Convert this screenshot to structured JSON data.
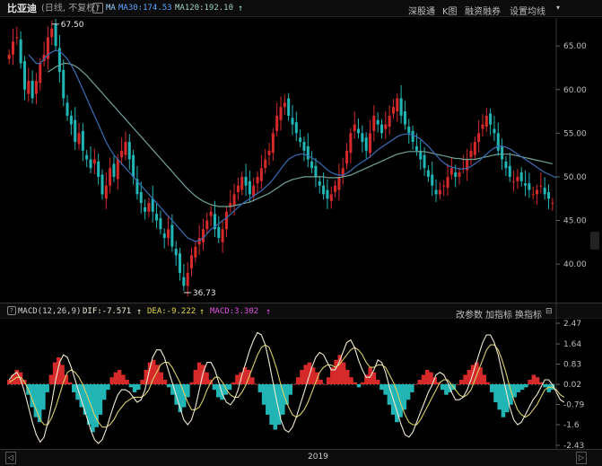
{
  "header": {
    "stock_name": "比亚迪",
    "period": "(日线, 不复权)",
    "help_icon": "?",
    "ma_prefix": "MA",
    "ma30": "MA30:174.53",
    "ma120": "MA120:192.10",
    "ma_arrow": "↑",
    "buttons": [
      "深股通",
      "K图",
      "融资融券",
      "设置均线"
    ],
    "dropdown_icon": "chevron-down-icon"
  },
  "price_axis": {
    "labels": [
      "65.00",
      "60.00",
      "55.00",
      "50.00",
      "45.00",
      "40.00"
    ]
  },
  "annotations": {
    "high": "67.50",
    "low": "36.73"
  },
  "macd": {
    "help_icon": "?",
    "title": "MACD(12,26,9)",
    "dif": "DIF:-7.571",
    "dif_arrow": "↑",
    "dea": "DEA:-9.222",
    "dea_arrow": "↑",
    "macd_val": "MACD:3.302",
    "macd_arrow": "↑",
    "buttons": [
      "改参数",
      "加指标",
      "换指标"
    ],
    "axis": [
      "2.47",
      "1.64",
      "0.83",
      "0.02",
      "-0.79",
      "-1.6",
      "-2.43"
    ]
  },
  "time_axis": {
    "year": "2019",
    "left_btn": "◁",
    "right_btn": "▷"
  },
  "chart_data": {
    "type": "candlestick",
    "y_range": [
      36,
      68
    ],
    "close": [
      64,
      65.5,
      66,
      63,
      60,
      61,
      59,
      61,
      63,
      64,
      66,
      67,
      65,
      62,
      59,
      57,
      56,
      54,
      55,
      53,
      52,
      51,
      52,
      50,
      48,
      49,
      51,
      50,
      52,
      53,
      54,
      52,
      50,
      48,
      47,
      46,
      47,
      46,
      45,
      44,
      43,
      44,
      42,
      41,
      39,
      37.5,
      39,
      41,
      42,
      43,
      44,
      45,
      46,
      44,
      43,
      44,
      46,
      47,
      48,
      49,
      50,
      49,
      48,
      49,
      50,
      51,
      52,
      53,
      55,
      57,
      58,
      58.5,
      57,
      56,
      55,
      54,
      53,
      52,
      51,
      50,
      49,
      48,
      47.5,
      48,
      49,
      50,
      51,
      53,
      55,
      56,
      55,
      54,
      53,
      55,
      57,
      56,
      55,
      56,
      57,
      58,
      59,
      57,
      56,
      55,
      54,
      53,
      52,
      51,
      50,
      49,
      48,
      48.5,
      49,
      50,
      51,
      50,
      50.5,
      51,
      52,
      53,
      54,
      55,
      56,
      57,
      56,
      55,
      53,
      52,
      51,
      50,
      49.5,
      50,
      49.5,
      49,
      48.5,
      48,
      48.5,
      49,
      48,
      47.5,
      47
    ],
    "ma_fast": [
      null,
      null,
      null,
      null,
      null,
      64,
      63.5,
      63,
      63,
      63.5,
      64,
      64.3,
      64.5,
      64.4,
      64,
      63.5,
      62.8,
      62,
      61,
      60,
      59,
      58,
      57,
      56,
      55,
      54,
      53.2,
      52.5,
      52,
      51.5,
      51,
      50.5,
      50,
      49.5,
      49,
      48.5,
      48,
      47.5,
      47,
      46.5,
      46,
      45.5,
      45,
      44.5,
      44,
      43.5,
      43,
      42.8,
      42.6,
      42.7,
      43,
      43.5,
      44,
      44.3,
      44.6,
      45,
      45.3,
      45.7,
      46.1,
      46.5,
      46.9,
      47.2,
      47.5,
      47.8,
      48.1,
      48.4,
      48.8,
      49.2,
      49.7,
      50.3,
      50.9,
      51.5,
      52,
      52.3,
      52.5,
      52.6,
      52.6,
      52.4,
      52.2,
      51.9,
      51.6,
      51.2,
      50.8,
      50.5,
      50.3,
      50.2,
      50.2,
      50.4,
      50.7,
      51.1,
      51.4,
      51.7,
      52,
      52.3,
      52.7,
      53.1,
      53.4,
      53.7,
      54,
      54.3,
      54.6,
      54.8,
      54.9,
      54.9,
      54.8,
      54.6,
      54.3,
      53.9,
      53.5,
      53,
      52.5,
      52,
      51.6,
      51.3,
      51.1,
      51,
      50.9,
      50.9,
      51,
      51.2,
      51.5,
      51.8,
      52.2,
      52.6,
      53,
      53.3,
      53.5,
      53.5,
      53.4,
      53.2,
      52.9,
      52.6,
      52.3,
      52,
      51.7,
      51.4,
      51.1,
      50.8,
      50.5,
      50.3,
      50.1,
      49.9
    ],
    "ma_slow": [
      null,
      null,
      null,
      null,
      null,
      null,
      null,
      null,
      null,
      null,
      62,
      62.3,
      62.6,
      62.8,
      63,
      63,
      62.9,
      62.7,
      62.4,
      62,
      61.6,
      61.1,
      60.6,
      60.1,
      59.6,
      59.1,
      58.6,
      58.1,
      57.6,
      57.1,
      56.6,
      56.1,
      55.6,
      55.1,
      54.6,
      54.1,
      53.6,
      53.1,
      52.6,
      52.1,
      51.6,
      51.1,
      50.6,
      50.1,
      49.6,
      49.1,
      48.6,
      48.2,
      47.8,
      47.5,
      47.2,
      47,
      46.8,
      46.7,
      46.6,
      46.6,
      46.6,
      46.6,
      46.7,
      46.8,
      46.9,
      47,
      47.1,
      47.3,
      47.5,
      47.7,
      47.9,
      48.1,
      48.4,
      48.7,
      49,
      49.3,
      49.5,
      49.7,
      49.8,
      49.9,
      50,
      50,
      50,
      50,
      50,
      50,
      49.9,
      49.9,
      49.9,
      49.9,
      50,
      50.1,
      50.2,
      50.4,
      50.6,
      50.8,
      51,
      51.2,
      51.4,
      51.6,
      51.8,
      52,
      52.2,
      52.4,
      52.6,
      52.7,
      52.8,
      52.9,
      52.9,
      52.9,
      52.9,
      52.9,
      52.8,
      52.7,
      52.6,
      52.5,
      52.4,
      52.3,
      52.2,
      52.1,
      52.1,
      52,
      52,
      52,
      52,
      52.1,
      52.2,
      52.3,
      52.4,
      52.5,
      52.6,
      52.6,
      52.6,
      52.6,
      52.5,
      52.4,
      52.3,
      52.2,
      52.1,
      52,
      51.9,
      51.8,
      51.7,
      51.6,
      51.5
    ],
    "macd_hist": [
      0.2,
      0.4,
      0.6,
      0.5,
      0.2,
      -0.4,
      -0.9,
      -1.3,
      -1.5,
      -1.0,
      -0.3,
      0.4,
      0.9,
      1.1,
      0.8,
      0.4,
      0.1,
      -0.3,
      -0.6,
      -0.9,
      -1.2,
      -1.6,
      -1.9,
      -1.7,
      -1.2,
      -0.6,
      -0.2,
      0.3,
      0.5,
      0.6,
      0.4,
      0.2,
      -0.1,
      -0.3,
      -0.2,
      0.2,
      0.6,
      0.9,
      1.0,
      0.8,
      0.5,
      0.2,
      -0.1,
      -0.4,
      -0.8,
      -1.1,
      -0.9,
      -0.5,
      0.1,
      0.6,
      0.9,
      0.8,
      0.5,
      0.2,
      -0.2,
      -0.5,
      -0.6,
      -0.4,
      -0.2,
      0.1,
      0.4,
      0.5,
      0.7,
      0.6,
      0.3,
      0.0,
      -0.3,
      -0.8,
      -1.2,
      -1.6,
      -1.8,
      -1.6,
      -1.2,
      -0.8,
      -0.4,
      0.0,
      0.3,
      0.6,
      0.8,
      0.9,
      0.7,
      0.5,
      0.2,
      0.0,
      0.3,
      0.7,
      1.0,
      1.2,
      0.9,
      0.6,
      0.3,
      0.1,
      -0.1,
      0.1,
      0.4,
      0.7,
      0.5,
      0.2,
      -0.2,
      -0.4,
      -0.8,
      -1.2,
      -1.5,
      -1.3,
      -1.0,
      -0.6,
      -0.3,
      0.0,
      0.2,
      0.4,
      0.6,
      0.5,
      0.3,
      0.1,
      -0.2,
      -0.4,
      -0.3,
      -0.2,
      0.0,
      0.2,
      0.4,
      0.6,
      0.8,
      0.9,
      0.7,
      0.4,
      0.1,
      -0.3,
      -0.7,
      -1.0,
      -1.3,
      -1.1,
      -0.8,
      -0.5,
      -0.3,
      -0.2,
      -0.1,
      0.2,
      0.4,
      0.3,
      0.1,
      -0.1,
      -0.3,
      -0.2
    ],
    "dif": [
      0.2,
      0.4,
      0.5,
      0.2,
      -0.3,
      -0.9,
      -1.5,
      -2.0,
      -2.3,
      -2.1,
      -1.5,
      -0.7,
      0.2,
      0.9,
      1.2,
      1.1,
      0.7,
      0.2,
      -0.3,
      -0.8,
      -1.3,
      -1.8,
      -2.2,
      -2.35,
      -2.2,
      -1.8,
      -1.3,
      -0.8,
      -0.4,
      -0.2,
      -0.2,
      -0.3,
      -0.5,
      -0.7,
      -0.6,
      -0.2,
      0.5,
      1.1,
      1.4,
      1.4,
      1.1,
      0.6,
      0.1,
      -0.4,
      -0.9,
      -1.4,
      -1.6,
      -1.4,
      -0.9,
      -0.2,
      0.5,
      0.9,
      0.9,
      0.6,
      0.1,
      -0.4,
      -0.7,
      -0.8,
      -0.6,
      -0.2,
      0.4,
      0.9,
      1.4,
      1.8,
      2.1,
      2.0,
      1.6,
      0.9,
      0.1,
      -0.7,
      -1.4,
      -1.8,
      -1.9,
      -1.7,
      -1.3,
      -0.8,
      -0.3,
      0.2,
      0.7,
      1.1,
      1.3,
      1.2,
      0.9,
      0.6,
      0.6,
      0.9,
      1.3,
      1.7,
      1.8,
      1.5,
      1.0,
      0.6,
      0.3,
      0.3,
      0.6,
      1.0,
      0.9,
      0.5,
      -0.1,
      -0.6,
      -1.1,
      -1.6,
      -2.0,
      -2.1,
      -1.9,
      -1.5,
      -1.1,
      -0.7,
      -0.3,
      0.0,
      0.4,
      0.5,
      0.4,
      0.1,
      -0.3,
      -0.6,
      -0.6,
      -0.5,
      -0.2,
      0.2,
      0.7,
      1.2,
      1.7,
      2.0,
      2.0,
      1.7,
      1.2,
      0.5,
      -0.2,
      -0.9,
      -1.4,
      -1.6,
      -1.5,
      -1.2,
      -0.9,
      -0.6,
      -0.4,
      -0.1,
      0.2,
      0.2,
      0.0,
      -0.3,
      -0.6,
      -0.7
    ],
    "dea": [
      0.1,
      0.2,
      0.3,
      0.3,
      0.1,
      -0.2,
      -0.6,
      -1.0,
      -1.4,
      -1.6,
      -1.6,
      -1.3,
      -0.9,
      -0.4,
      0.1,
      0.5,
      0.6,
      0.5,
      0.3,
      0.0,
      -0.4,
      -0.8,
      -1.2,
      -1.5,
      -1.7,
      -1.7,
      -1.6,
      -1.4,
      -1.1,
      -0.9,
      -0.7,
      -0.6,
      -0.5,
      -0.5,
      -0.5,
      -0.4,
      -0.2,
      0.2,
      0.5,
      0.8,
      0.9,
      0.9,
      0.7,
      0.4,
      0.1,
      -0.3,
      -0.7,
      -1.0,
      -1.0,
      -0.9,
      -0.6,
      -0.2,
      0.1,
      0.3,
      0.3,
      0.1,
      -0.2,
      -0.4,
      -0.5,
      -0.5,
      -0.3,
      0.0,
      0.4,
      0.8,
      1.2,
      1.5,
      1.6,
      1.5,
      1.1,
      0.6,
      0.0,
      -0.5,
      -0.9,
      -1.2,
      -1.3,
      -1.2,
      -1.0,
      -0.7,
      -0.3,
      0.1,
      0.5,
      0.7,
      0.8,
      0.8,
      0.7,
      0.8,
      1.0,
      1.2,
      1.4,
      1.5,
      1.4,
      1.2,
      0.9,
      0.7,
      0.7,
      0.8,
      0.8,
      0.7,
      0.4,
      0.1,
      -0.3,
      -0.8,
      -1.2,
      -1.5,
      -1.6,
      -1.6,
      -1.4,
      -1.1,
      -0.8,
      -0.5,
      -0.2,
      0.1,
      0.2,
      0.2,
      0.0,
      -0.2,
      -0.4,
      -0.5,
      -0.4,
      -0.2,
      0.2,
      0.6,
      1.0,
      1.4,
      1.6,
      1.6,
      1.4,
      1.0,
      0.5,
      -0.1,
      -0.6,
      -1.0,
      -1.2,
      -1.3,
      -1.2,
      -1.0,
      -0.8,
      -0.5,
      -0.2,
      -0.1,
      -0.1,
      -0.2,
      -0.4,
      -0.5
    ],
    "macd_range": [
      -2.43,
      2.47
    ]
  },
  "colors": {
    "up": "#d62a2a",
    "down": "#22b5b5",
    "ma_fast": "#3a6db5",
    "ma_slow": "#6fa39a",
    "dif": "#f0ead2",
    "dea": "#d8cf6a",
    "grid": "#3a3a3a",
    "axis_text": "#bdbdbd",
    "accent_blue": "#5aa5ff",
    "accent_yellow": "#e0d84a",
    "accent_magenta": "#e050e0"
  }
}
